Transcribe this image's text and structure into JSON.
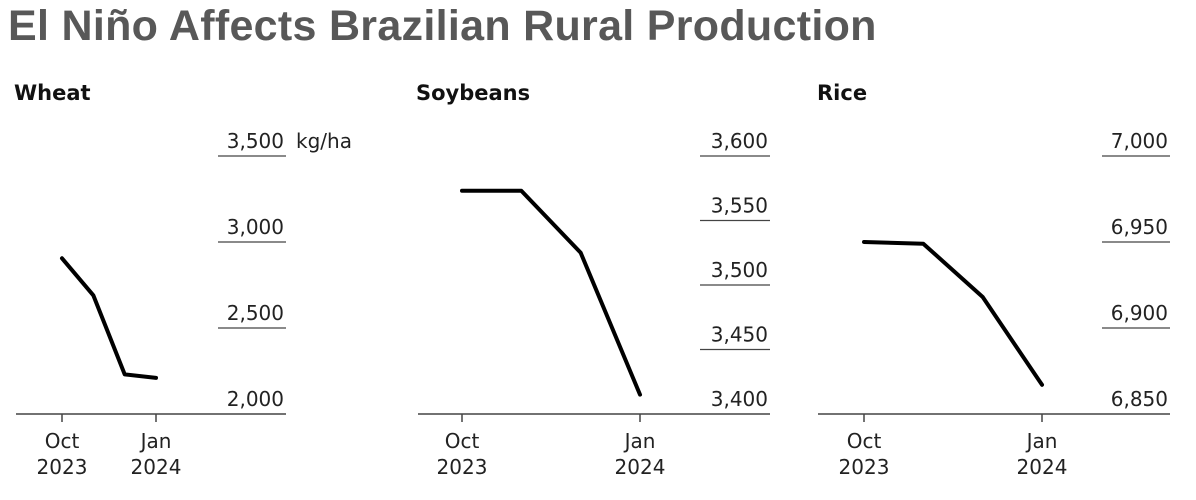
{
  "title": "El Niño Affects Brazilian Rural Production",
  "colors": {
    "title": "#585858",
    "line": "#000000",
    "grid": "#444444"
  },
  "chart_data": [
    {
      "type": "line",
      "title": "Wheat",
      "unit": "kg/ha",
      "x": [
        "Oct 2023",
        "Nov 2023",
        "Dec 2023",
        "Jan 2024"
      ],
      "x_tick_labels": [
        {
          "x": "Oct 2023",
          "line1": "Oct",
          "line2": "2023"
        },
        {
          "x": "Jan 2024",
          "line1": "Jan",
          "line2": "2024"
        }
      ],
      "series": [
        {
          "values": [
            2905,
            2690,
            2230,
            2210
          ]
        }
      ],
      "yticks": [
        {
          "value": 2000,
          "label": "2,000"
        },
        {
          "value": 2500,
          "label": "2,500"
        },
        {
          "value": 3000,
          "label": "3,000"
        },
        {
          "value": 3500,
          "label": "3,500"
        }
      ],
      "ylim": [
        2000,
        3500
      ],
      "axis_side": "right",
      "grid": true
    },
    {
      "type": "line",
      "title": "Soybeans",
      "unit": "",
      "x": [
        "Oct 2023",
        "Nov 2023",
        "Dec 2023",
        "Jan 2024"
      ],
      "x_tick_labels": [
        {
          "x": "Oct 2023",
          "line1": "Oct",
          "line2": "2023"
        },
        {
          "x": "Jan 2024",
          "line1": "Jan",
          "line2": "2024"
        }
      ],
      "series": [
        {
          "values": [
            3573,
            3573,
            3525,
            3415
          ]
        }
      ],
      "yticks": [
        {
          "value": 3400,
          "label": "3,400"
        },
        {
          "value": 3450,
          "label": "3,450"
        },
        {
          "value": 3500,
          "label": "3,500"
        },
        {
          "value": 3550,
          "label": "3,550"
        },
        {
          "value": 3600,
          "label": "3,600"
        }
      ],
      "ylim": [
        3400,
        3600
      ],
      "axis_side": "right",
      "grid": true
    },
    {
      "type": "line",
      "title": "Rice",
      "unit": "",
      "x": [
        "Oct 2023",
        "Nov 2023",
        "Dec 2023",
        "Jan 2024"
      ],
      "x_tick_labels": [
        {
          "x": "Oct 2023",
          "line1": "Oct",
          "line2": "2023"
        },
        {
          "x": "Jan 2024",
          "line1": "Jan",
          "line2": "2024"
        }
      ],
      "series": [
        {
          "values": [
            6950,
            6949,
            6918,
            6867
          ]
        }
      ],
      "yticks": [
        {
          "value": 6850,
          "label": "6,850"
        },
        {
          "value": 6900,
          "label": "6,900"
        },
        {
          "value": 6950,
          "label": "6,950"
        },
        {
          "value": 7000,
          "label": "7,000"
        }
      ],
      "ylim": [
        6850,
        7000
      ],
      "axis_side": "right",
      "grid": true
    }
  ]
}
